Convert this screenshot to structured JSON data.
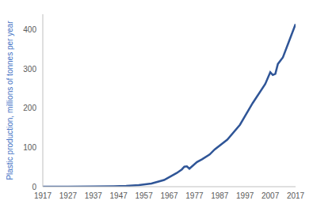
{
  "chart_data": {
    "type": "line",
    "y_label": "Plastic production, millions of tonnes per year",
    "x": [
      1917,
      1927,
      1937,
      1945,
      1950,
      1955,
      1960,
      1965,
      1970,
      1972,
      1973,
      1974,
      1975,
      1978,
      1980,
      1983,
      1985,
      1990,
      1995,
      2000,
      2005,
      2007,
      2008,
      2009,
      2010,
      2012,
      2015,
      2017
    ],
    "values": [
      0,
      0,
      0.5,
      1,
      2,
      4,
      8,
      17,
      35,
      44,
      51,
      52,
      46,
      63,
      70,
      82,
      95,
      120,
      158,
      213,
      262,
      292,
      285,
      288,
      313,
      330,
      381,
      415
    ],
    "color": "#2f5597",
    "xlim": [
      1917,
      2017
    ],
    "xticks": [
      1917,
      1927,
      1937,
      1947,
      1957,
      1967,
      1977,
      1987,
      1997,
      2007,
      2017
    ],
    "ylim": [
      0,
      440
    ],
    "yticks": [
      0,
      100,
      200,
      300,
      400
    ],
    "grid": false
  }
}
